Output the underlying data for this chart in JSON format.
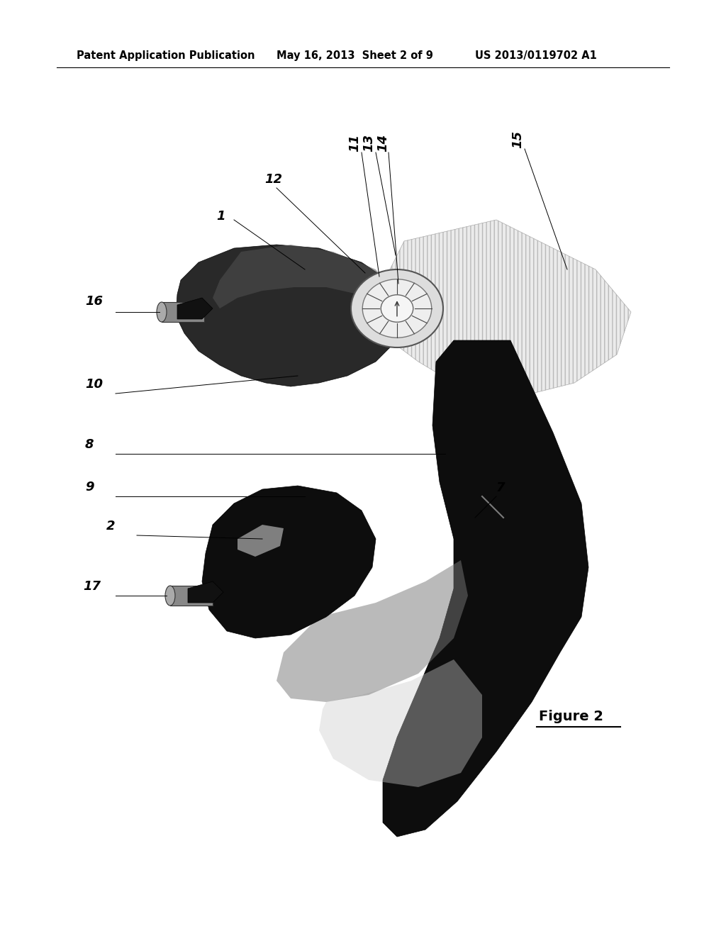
{
  "header_left": "Patent Application Publication",
  "header_center": "May 16, 2013  Sheet 2 of 9",
  "header_right": "US 2013/0119702 A1",
  "figure_label": "Figure 2",
  "bg_color": "#ffffff",
  "header_fontsize": 10.5
}
